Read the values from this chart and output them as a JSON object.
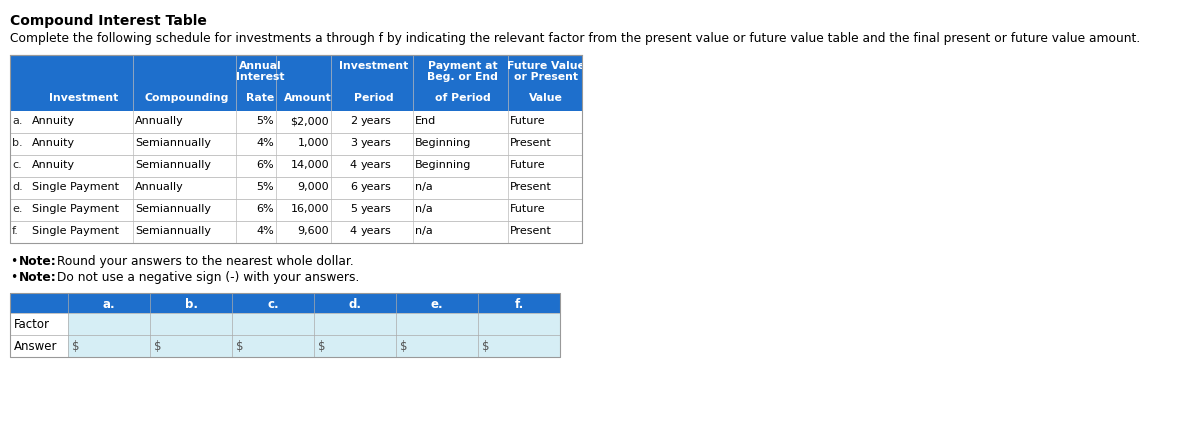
{
  "title": "Compound Interest Table",
  "subtitle": "Complete the following schedule for investments a through f by indicating the relevant factor from the present value or future value table and the final present or future value amount.",
  "main_header_bg": "#1E6FCC",
  "main_header_text": "#FFFFFF",
  "answer_header_bg": "#1E6FCC",
  "answer_header_text": "#FFFFFF",
  "answer_row_bg": "#D6EEF5",
  "title_color": "#000000",
  "subtitle_color": "#000000",
  "note_color": "#000000",
  "rows": [
    [
      "a.",
      "Annuity",
      "Annually",
      "5%",
      "$2,000",
      "2",
      "End",
      "Future"
    ],
    [
      "b.",
      "Annuity",
      "Semiannually",
      "4%",
      "1,000",
      "3",
      "Beginning",
      "Present"
    ],
    [
      "c.",
      "Annuity",
      "Semiannually",
      "6%",
      "14,000",
      "4",
      "Beginning",
      "Future"
    ],
    [
      "d.",
      "Single Payment",
      "Annually",
      "5%",
      "9,000",
      "6",
      "n/a",
      "Present"
    ],
    [
      "e.",
      "Single Payment",
      "Semiannually",
      "6%",
      "16,000",
      "5",
      "n/a",
      "Future"
    ],
    [
      "f.",
      "Single Payment",
      "Semiannually",
      "4%",
      "9,600",
      "4",
      "n/a",
      "Present"
    ]
  ],
  "answer_labels": [
    "a.",
    "b.",
    "c.",
    "d.",
    "e.",
    "f."
  ]
}
